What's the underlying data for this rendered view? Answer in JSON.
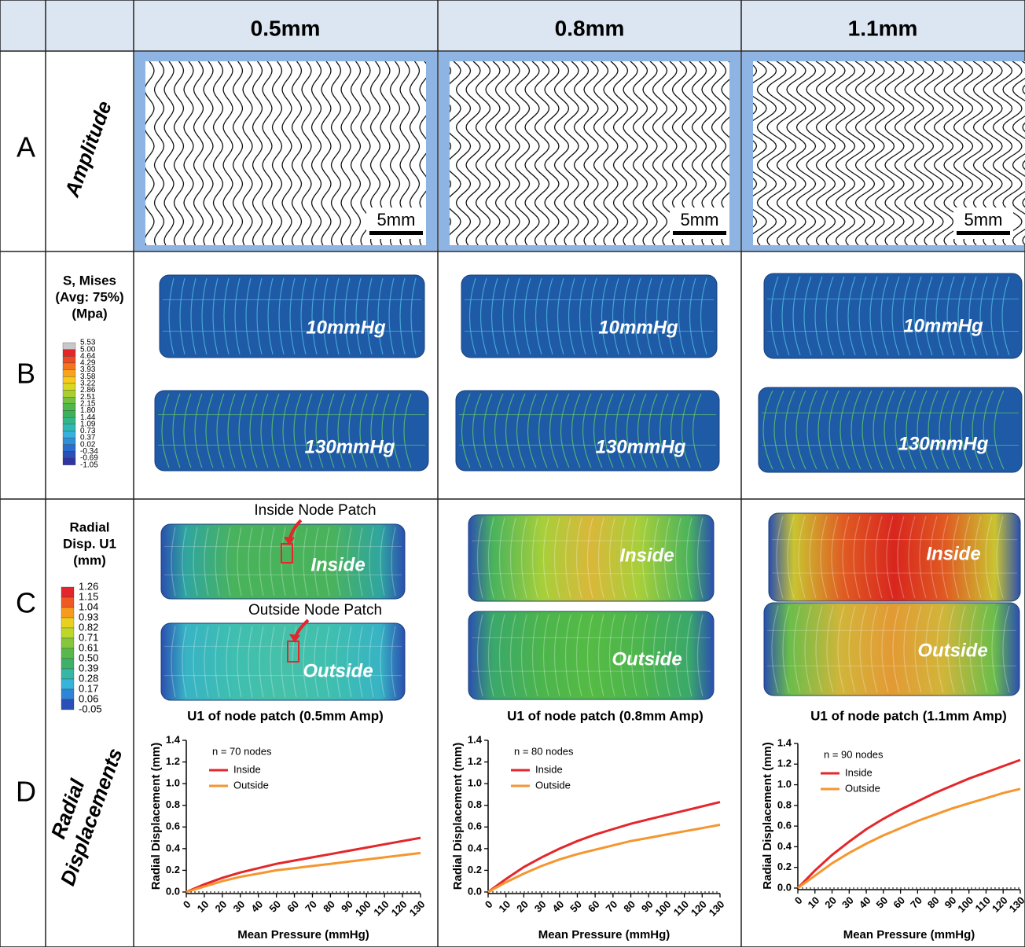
{
  "header": {
    "columns": [
      "0.5mm",
      "0.8mm",
      "1.1mm"
    ]
  },
  "rows": [
    {
      "letter": "A",
      "title": "Amplitude"
    },
    {
      "letter": "B"
    },
    {
      "letter": "C"
    },
    {
      "letter": "D",
      "title": [
        "Radial",
        "Displacements"
      ]
    }
  ],
  "panels": [
    {
      "scale_bar": "5mm",
      "pressures": [
        "10mmHg",
        "130mmHg"
      ],
      "surfaces": [
        "Inside",
        "Outside"
      ]
    },
    {
      "scale_bar": "5mm",
      "pressures": [
        "10mmHg",
        "130mmHg"
      ],
      "surfaces": [
        "Inside",
        "Outside"
      ]
    },
    {
      "scale_bar": "5mm",
      "pressures": [
        "10mmHg",
        "130mmHg"
      ],
      "surfaces": [
        "Inside",
        "Outside"
      ]
    }
  ],
  "stress_legend": {
    "title": [
      "S, Mises",
      "(Avg: 75%)",
      "(Mpa)"
    ],
    "levels": [
      "5.53",
      "5.00",
      "4.64",
      "4.29",
      "3.93",
      "3.58",
      "3.22",
      "2.86",
      "2.51",
      "2.15",
      "1.80",
      "1.44",
      "1.09",
      "0.73",
      "0.37",
      "0.02",
      "-0.34",
      "-0.69",
      "-1.05"
    ]
  },
  "disp_legend": {
    "title": [
      "Radial",
      "Disp. U1",
      "(mm)"
    ],
    "levels": [
      "1.26",
      "1.15",
      "1.04",
      "0.93",
      "0.82",
      "0.71",
      "0.61",
      "0.50",
      "0.39",
      "0.28",
      "0.17",
      "0.06",
      "-0.05"
    ]
  },
  "patch_labels": [
    "Inside Node Patch",
    "Outside Node Patch"
  ],
  "chart_data": [
    {
      "type": "line",
      "title": "U1 of node patch (0.5mm Amp)",
      "annotation": "n = 70 nodes",
      "xlabel": "Mean Pressure (mmHg)",
      "ylabel": "Radial Displacement (mm)",
      "x": [
        0,
        10,
        20,
        30,
        40,
        50,
        60,
        70,
        80,
        90,
        100,
        110,
        120,
        130
      ],
      "xlim": [
        0,
        130
      ],
      "xticks": [
        0,
        10,
        20,
        30,
        40,
        50,
        60,
        70,
        80,
        90,
        100,
        110,
        120,
        130
      ],
      "ylim": [
        0,
        1.4
      ],
      "yticks": [
        {
          "value": 0,
          "label": "0.0"
        },
        0.2,
        0.4,
        0.6,
        0.8,
        {
          "value": 1,
          "label": "1.0"
        },
        1.2,
        1.4
      ],
      "series": [
        {
          "name": "Inside",
          "color": "#e3272b",
          "values": [
            0,
            0.07,
            0.13,
            0.18,
            0.22,
            0.26,
            0.29,
            0.32,
            0.35,
            0.38,
            0.41,
            0.44,
            0.47,
            0.5
          ]
        },
        {
          "name": "Outside",
          "color": "#f5962f",
          "values": [
            0,
            0.05,
            0.1,
            0.14,
            0.17,
            0.2,
            0.22,
            0.24,
            0.26,
            0.28,
            0.3,
            0.32,
            0.34,
            0.36
          ]
        }
      ]
    },
    {
      "type": "line",
      "title": "U1 of node patch (0.8mm Amp)",
      "annotation": "n = 80 nodes",
      "xlabel": "Mean Pressure (mmHg)",
      "ylabel": "Radial Displacement (mm)",
      "x": [
        0,
        10,
        20,
        30,
        40,
        50,
        60,
        70,
        80,
        90,
        100,
        110,
        120,
        130
      ],
      "xlim": [
        0,
        130
      ],
      "xticks": [
        0,
        10,
        20,
        30,
        40,
        50,
        60,
        70,
        80,
        90,
        100,
        110,
        120,
        130
      ],
      "ylim": [
        0,
        1.4
      ],
      "yticks": [
        {
          "value": 0,
          "label": "0.0"
        },
        0.2,
        0.4,
        0.6,
        0.8,
        {
          "value": 1,
          "label": "1.0"
        },
        1.2,
        1.4
      ],
      "series": [
        {
          "name": "Inside",
          "color": "#e3272b",
          "values": [
            0,
            0.12,
            0.23,
            0.32,
            0.4,
            0.47,
            0.53,
            0.58,
            0.63,
            0.67,
            0.71,
            0.75,
            0.79,
            0.83
          ]
        },
        {
          "name": "Outside",
          "color": "#f5962f",
          "values": [
            0,
            0.09,
            0.17,
            0.24,
            0.3,
            0.35,
            0.39,
            0.43,
            0.47,
            0.5,
            0.53,
            0.56,
            0.59,
            0.62
          ]
        }
      ]
    },
    {
      "type": "line",
      "title": "U1 of node patch (1.1mm Amp)",
      "annotation": "n = 90 nodes",
      "xlabel": "Mean Pressure (mmHg)",
      "ylabel": "Radial Displacement (mm)",
      "x": [
        0,
        10,
        20,
        30,
        40,
        50,
        60,
        70,
        80,
        90,
        100,
        110,
        120,
        130
      ],
      "xlim": [
        0,
        130
      ],
      "xticks": [
        0,
        10,
        20,
        30,
        40,
        50,
        60,
        70,
        80,
        90,
        100,
        110,
        120,
        130
      ],
      "ylim": [
        0,
        1.4
      ],
      "yticks": [
        {
          "value": 0,
          "label": "0.0"
        },
        0.2,
        0.4,
        0.6,
        0.8,
        {
          "value": 1,
          "label": "1.0"
        },
        1.2,
        1.4
      ],
      "series": [
        {
          "name": "Inside",
          "color": "#e3272b",
          "values": [
            0,
            0.17,
            0.32,
            0.45,
            0.57,
            0.67,
            0.76,
            0.84,
            0.92,
            0.99,
            1.06,
            1.12,
            1.18,
            1.24
          ]
        },
        {
          "name": "Outside",
          "color": "#f5962f",
          "values": [
            0,
            0.12,
            0.24,
            0.34,
            0.43,
            0.51,
            0.58,
            0.65,
            0.71,
            0.77,
            0.82,
            0.87,
            0.92,
            0.96
          ]
        }
      ]
    }
  ]
}
